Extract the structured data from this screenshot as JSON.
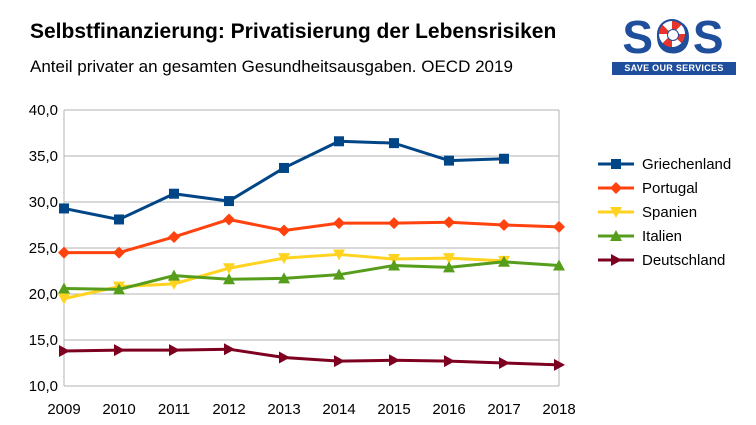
{
  "title": "Selbstfinanzierung: Privatisierung der Lebensrisiken",
  "subtitle": "Anteil privater an gesamten Gesundheitsausgaben. OECD 2019",
  "logo": {
    "word": "SOS",
    "tagline": "SAVE OUR SERVICES"
  },
  "chart_data": {
    "type": "line",
    "x": [
      "2009",
      "2010",
      "2011",
      "2012",
      "2013",
      "2014",
      "2015",
      "2016",
      "2017",
      "2018"
    ],
    "ylim": [
      10,
      40
    ],
    "yticks": [
      "10,0",
      "15,0",
      "20,0",
      "25,0",
      "30,0",
      "35,0",
      "40,0"
    ],
    "grid": true,
    "legend": "right",
    "series": [
      {
        "name": "Griechenland",
        "color": "#004586",
        "marker": "square",
        "values": [
          29.3,
          28.1,
          30.9,
          30.1,
          33.7,
          36.6,
          36.4,
          34.5,
          34.7,
          null
        ]
      },
      {
        "name": "Portugal",
        "color": "#ff420e",
        "marker": "diamond",
        "values": [
          24.5,
          24.5,
          26.2,
          28.1,
          26.9,
          27.7,
          27.7,
          27.8,
          27.5,
          27.3
        ]
      },
      {
        "name": "Spanien",
        "color": "#ffd320",
        "marker": "triangle-down",
        "values": [
          19.5,
          20.8,
          21.1,
          22.8,
          23.9,
          24.3,
          23.8,
          23.9,
          23.6,
          null
        ]
      },
      {
        "name": "Italien",
        "color": "#579d1c",
        "marker": "triangle-up",
        "values": [
          20.6,
          20.5,
          22.0,
          21.6,
          21.7,
          22.1,
          23.1,
          22.9,
          23.5,
          23.1
        ]
      },
      {
        "name": "Deutschland",
        "color": "#7e0021",
        "marker": "triangle-right",
        "values": [
          13.8,
          13.9,
          13.9,
          14.0,
          13.1,
          12.7,
          12.8,
          12.7,
          12.5,
          12.3
        ]
      }
    ]
  }
}
